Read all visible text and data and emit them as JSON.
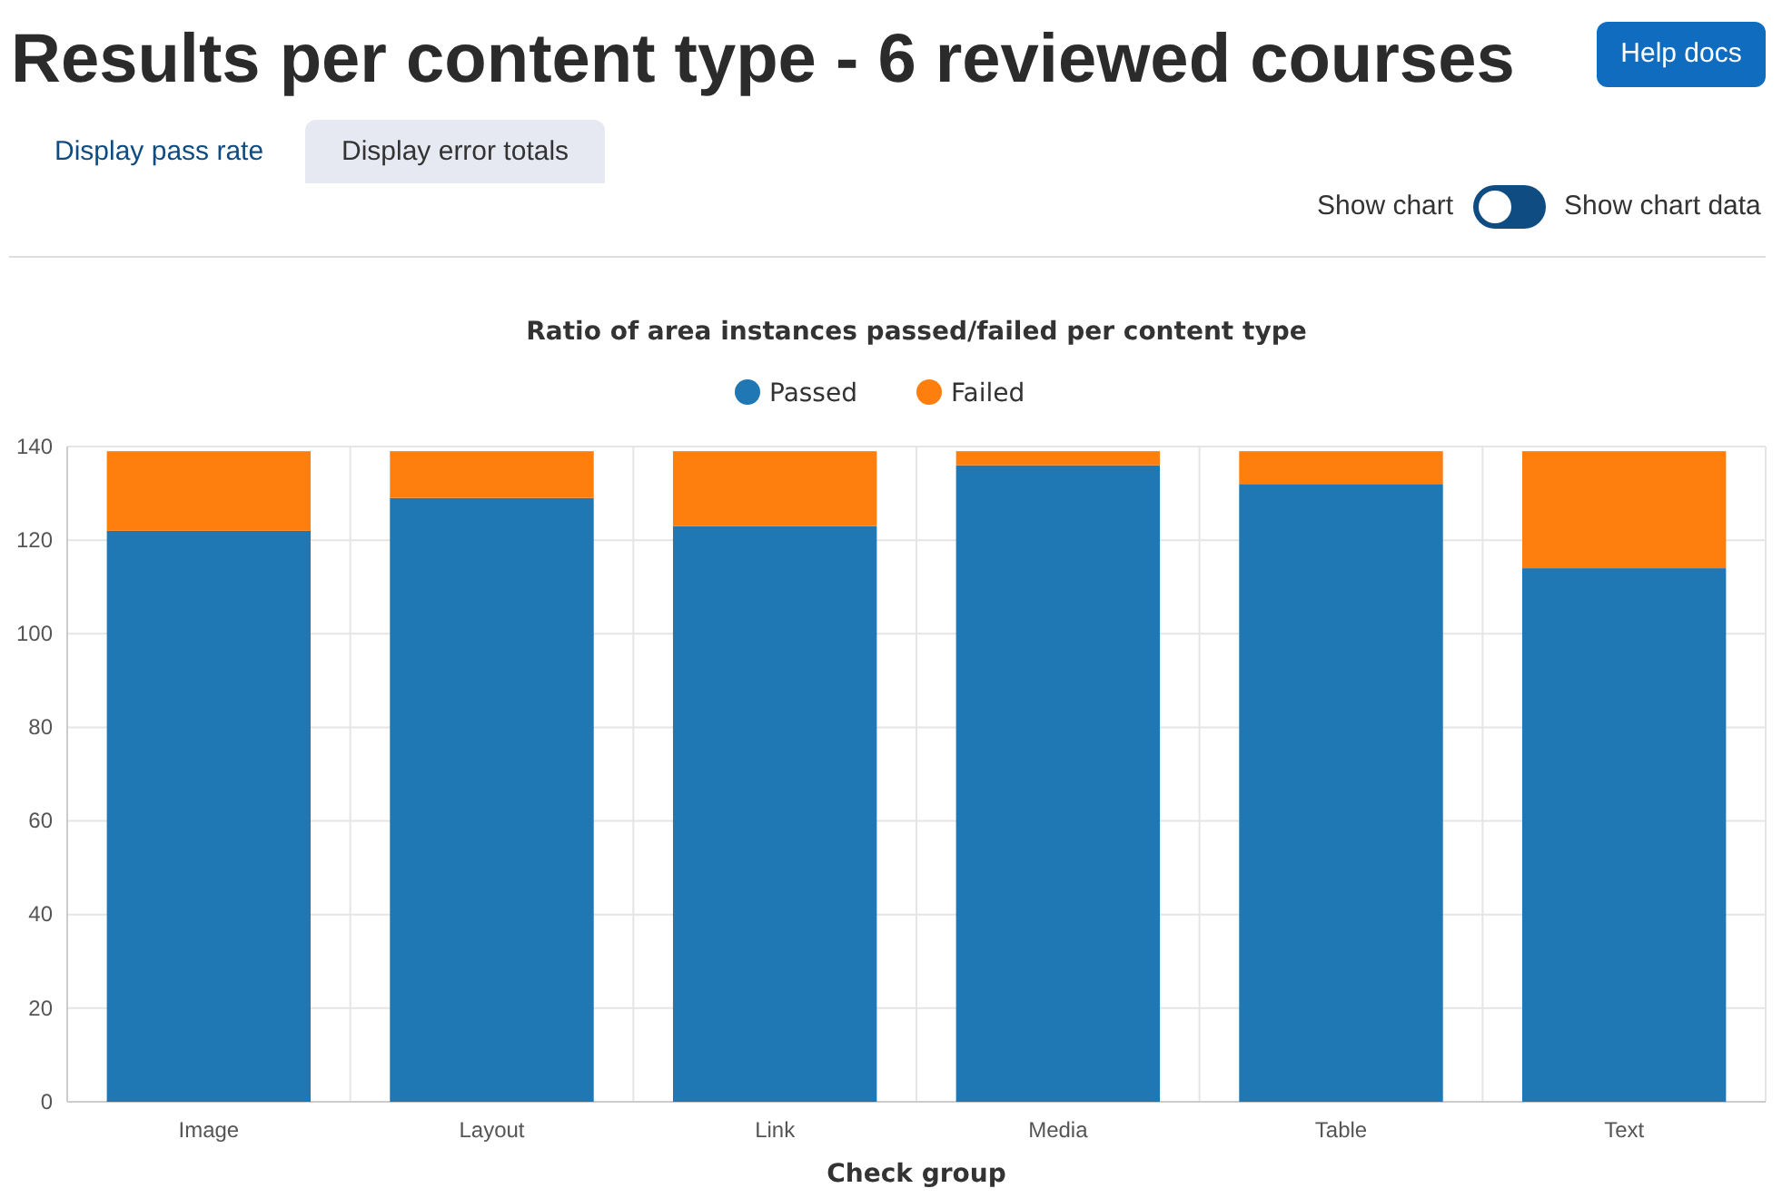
{
  "chart_data": {
    "type": "bar",
    "title": "Ratio of area instances passed/failed per content type",
    "xlabel": "Check group",
    "categories": [
      "Image",
      "Layout",
      "Link",
      "Media",
      "Table",
      "Text"
    ],
    "series": [
      {
        "name": "Passed",
        "color": "#1f77b4",
        "values": [
          122,
          129,
          123,
          136,
          132,
          114
        ]
      },
      {
        "name": "Failed",
        "color": "#ff7f0e",
        "values": [
          17,
          10,
          16,
          3,
          7,
          25
        ]
      }
    ],
    "stacked": true,
    "ylim": [
      0,
      140
    ],
    "yticks": [
      0,
      20,
      40,
      60,
      80,
      100,
      120,
      140
    ],
    "grid": true,
    "legend": "top",
    "annotations": [
      "Results per content type - 6 reviewed courses",
      "Help docs",
      "Display pass rate",
      "Display error totals",
      "Show chart",
      "Show chart data"
    ]
  }
}
